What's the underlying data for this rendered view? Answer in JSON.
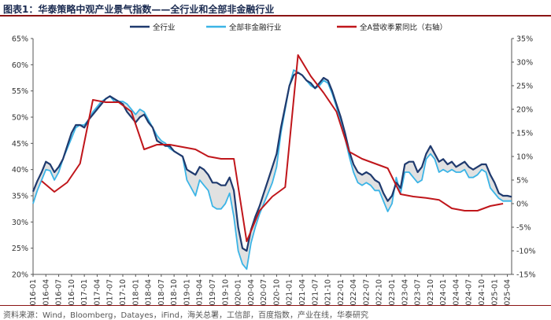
{
  "title": "图表1：华泰策略中观产业景气指数——全行业和全部非金融行业",
  "source": "资料来源：Wind，Bloomberg，Datayes，iFind，海关总署，工信部，百度指数，产业在线，华泰研究",
  "chart_data": {
    "type": "line",
    "title": "",
    "xlabel": "",
    "ylabel": "",
    "ylim_left": [
      20,
      65
    ],
    "ylim_right": [
      -15,
      35
    ],
    "left_ticks": [
      "20%",
      "25%",
      "30%",
      "35%",
      "40%",
      "45%",
      "50%",
      "55%",
      "60%",
      "65%"
    ],
    "right_ticks": [
      "-15%",
      "-10%",
      "-5%",
      "0%",
      "5%",
      "10%",
      "15%",
      "20%",
      "25%",
      "30%",
      "35%"
    ],
    "grid": false,
    "legend_position": "top",
    "colors": {
      "all": "#1f3a6e",
      "nonfin": "#3bb4e6",
      "profit": "#c0161b",
      "shade": "#c9c9c9"
    },
    "x": [
      "2016-01",
      "2016-02",
      "2016-03",
      "2016-04",
      "2016-05",
      "2016-06",
      "2016-07",
      "2016-08",
      "2016-09",
      "2016-10",
      "2016-11",
      "2016-12",
      "2017-01",
      "2017-02",
      "2017-03",
      "2017-04",
      "2017-05",
      "2017-06",
      "2017-07",
      "2017-08",
      "2017-09",
      "2017-10",
      "2017-11",
      "2017-12",
      "2018-01",
      "2018-02",
      "2018-03",
      "2018-04",
      "2018-05",
      "2018-06",
      "2018-07",
      "2018-08",
      "2018-09",
      "2018-10",
      "2018-11",
      "2018-12",
      "2019-01",
      "2019-02",
      "2019-03",
      "2019-04",
      "2019-05",
      "2019-06",
      "2019-07",
      "2019-08",
      "2019-09",
      "2019-10",
      "2019-11",
      "2019-12",
      "2020-01",
      "2020-02",
      "2020-03",
      "2020-04",
      "2020-05",
      "2020-06",
      "2020-07",
      "2020-08",
      "2020-09",
      "2020-10",
      "2020-11",
      "2020-12",
      "2021-01",
      "2021-02",
      "2021-03",
      "2021-04",
      "2021-05",
      "2021-06",
      "2021-07",
      "2021-08",
      "2021-09",
      "2021-10",
      "2021-11",
      "2021-12",
      "2022-01",
      "2022-02",
      "2022-03",
      "2022-04",
      "2022-05",
      "2022-06",
      "2022-07",
      "2022-08",
      "2022-09",
      "2022-10",
      "2022-11",
      "2022-12",
      "2023-01",
      "2023-02",
      "2023-03",
      "2023-04",
      "2023-05",
      "2023-06",
      "2023-07",
      "2023-08",
      "2023-09",
      "2023-10",
      "2023-11",
      "2023-12",
      "2024-01",
      "2024-02",
      "2024-03",
      "2024-04",
      "2024-05",
      "2024-06",
      "2024-07",
      "2024-08",
      "2024-09",
      "2024-10",
      "2024-11",
      "2024-12",
      "2025-01",
      "2025-02",
      "2025-03",
      "2025-04",
      "2025-05"
    ],
    "x_tick_labels": [
      "2016-01",
      "2016-04",
      "2016-07",
      "2016-10",
      "2017-01",
      "2017-04",
      "2017-07",
      "2017-10",
      "2018-01",
      "2018-04",
      "2018-07",
      "2018-10",
      "2019-01",
      "2019-04",
      "2019-07",
      "2019-10",
      "2020-01",
      "2020-04",
      "2020-07",
      "2020-10",
      "2021-01",
      "2021-04",
      "2021-07",
      "2021-10",
      "2022-01",
      "2022-04",
      "2022-07",
      "2022-10",
      "2023-01",
      "2023-04",
      "2023-07",
      "2023-10",
      "2024-01",
      "2024-04",
      "2024-07",
      "2024-10",
      "2025-01",
      "2025-04"
    ],
    "series": [
      {
        "name": "全行业",
        "axis": "left",
        "values": [
          35.8,
          37.8,
          39.5,
          41.5,
          41.0,
          39.5,
          40.5,
          42.0,
          44.5,
          47.0,
          48.5,
          48.5,
          48.0,
          49.5,
          50.5,
          51.5,
          52.5,
          53.5,
          54.0,
          53.5,
          53.0,
          52.5,
          51.0,
          50.0,
          49.0,
          50.0,
          50.5,
          49.0,
          48.0,
          45.5,
          45.0,
          44.5,
          44.5,
          43.5,
          43.0,
          42.5,
          40.0,
          39.5,
          39.0,
          40.5,
          40.0,
          39.0,
          37.5,
          37.5,
          37.0,
          37.0,
          38.5,
          36.0,
          29.0,
          25.0,
          24.5,
          28.5,
          31.0,
          33.0,
          35.5,
          38.0,
          40.5,
          43.0,
          48.0,
          52.0,
          56.0,
          58.0,
          58.5,
          58.0,
          57.0,
          56.5,
          55.5,
          56.5,
          57.5,
          57.0,
          55.0,
          52.5,
          50.0,
          47.0,
          43.5,
          41.0,
          39.5,
          39.0,
          39.5,
          39.0,
          38.0,
          37.5,
          35.5,
          34.0,
          35.0,
          37.5,
          36.5,
          41.0,
          41.5,
          41.5,
          39.5,
          40.5,
          43.0,
          44.5,
          43.0,
          41.5,
          42.0,
          41.0,
          41.5,
          40.5,
          41.0,
          41.5,
          40.5,
          40.0,
          40.5,
          41.0,
          41.0,
          39.0,
          37.5,
          35.5,
          35.0,
          35.0,
          34.8
        ]
      },
      {
        "name": "全部非金融行业",
        "axis": "left",
        "values": [
          33.5,
          36.0,
          38.0,
          40.0,
          39.8,
          38.0,
          39.5,
          42.0,
          44.0,
          46.0,
          48.0,
          48.5,
          48.5,
          49.5,
          51.0,
          52.0,
          53.0,
          53.5,
          54.0,
          53.0,
          53.0,
          53.0,
          52.5,
          51.5,
          50.5,
          51.5,
          51.0,
          49.5,
          48.0,
          46.5,
          45.5,
          45.0,
          44.0,
          43.5,
          43.0,
          42.5,
          38.0,
          36.5,
          35.0,
          38.0,
          37.0,
          36.0,
          33.0,
          32.5,
          32.5,
          33.5,
          35.5,
          31.0,
          24.5,
          22.0,
          21.0,
          26.0,
          29.0,
          31.5,
          33.5,
          35.5,
          37.5,
          40.5,
          47.0,
          51.5,
          56.0,
          59.0,
          58.5,
          58.0,
          57.0,
          56.0,
          55.5,
          56.0,
          57.0,
          56.5,
          54.5,
          52.0,
          49.0,
          46.0,
          42.5,
          39.5,
          37.5,
          37.0,
          37.5,
          37.0,
          36.0,
          36.0,
          34.0,
          32.0,
          33.5,
          38.5,
          35.5,
          39.5,
          39.5,
          38.5,
          37.5,
          38.0,
          42.0,
          43.0,
          42.0,
          39.5,
          40.0,
          39.5,
          40.0,
          39.5,
          39.5,
          40.0,
          38.5,
          38.5,
          39.0,
          40.0,
          39.5,
          36.5,
          35.5,
          34.5,
          34.0,
          34.0,
          34.0
        ]
      },
      {
        "name": "全A营收季累同比（右轴）",
        "axis": "right",
        "points": [
          [
            "2016-03",
            4.8
          ],
          [
            "2016-06",
            2.5
          ],
          [
            "2016-09",
            4.5
          ],
          [
            "2016-12",
            8.5
          ],
          [
            "2017-03",
            22.0
          ],
          [
            "2017-06",
            21.5
          ],
          [
            "2017-09",
            21.5
          ],
          [
            "2017-12",
            19.5
          ],
          [
            "2018-03",
            11.5
          ],
          [
            "2018-06",
            12.5
          ],
          [
            "2018-09",
            12.5
          ],
          [
            "2018-12",
            12.0
          ],
          [
            "2019-03",
            11.5
          ],
          [
            "2019-06",
            10.0
          ],
          [
            "2019-09",
            9.5
          ],
          [
            "2019-12",
            9.5
          ],
          [
            "2020-03",
            -8.0
          ],
          [
            "2020-06",
            -1.5
          ],
          [
            "2020-09",
            1.5
          ],
          [
            "2020-12",
            3.5
          ],
          [
            "2021-03",
            31.5
          ],
          [
            "2021-06",
            27.0
          ],
          [
            "2021-09",
            23.5
          ],
          [
            "2021-12",
            19.5
          ],
          [
            "2022-03",
            11.0
          ],
          [
            "2022-06",
            9.5
          ],
          [
            "2022-09",
            8.5
          ],
          [
            "2022-12",
            7.5
          ],
          [
            "2023-03",
            2.0
          ],
          [
            "2023-06",
            1.5
          ],
          [
            "2023-09",
            1.2
          ],
          [
            "2023-12",
            0.8
          ],
          [
            "2024-03",
            -1.0
          ],
          [
            "2024-06",
            -1.5
          ],
          [
            "2024-09",
            -1.5
          ],
          [
            "2024-12",
            -0.5
          ],
          [
            "2025-03",
            0.0
          ]
        ]
      }
    ]
  }
}
